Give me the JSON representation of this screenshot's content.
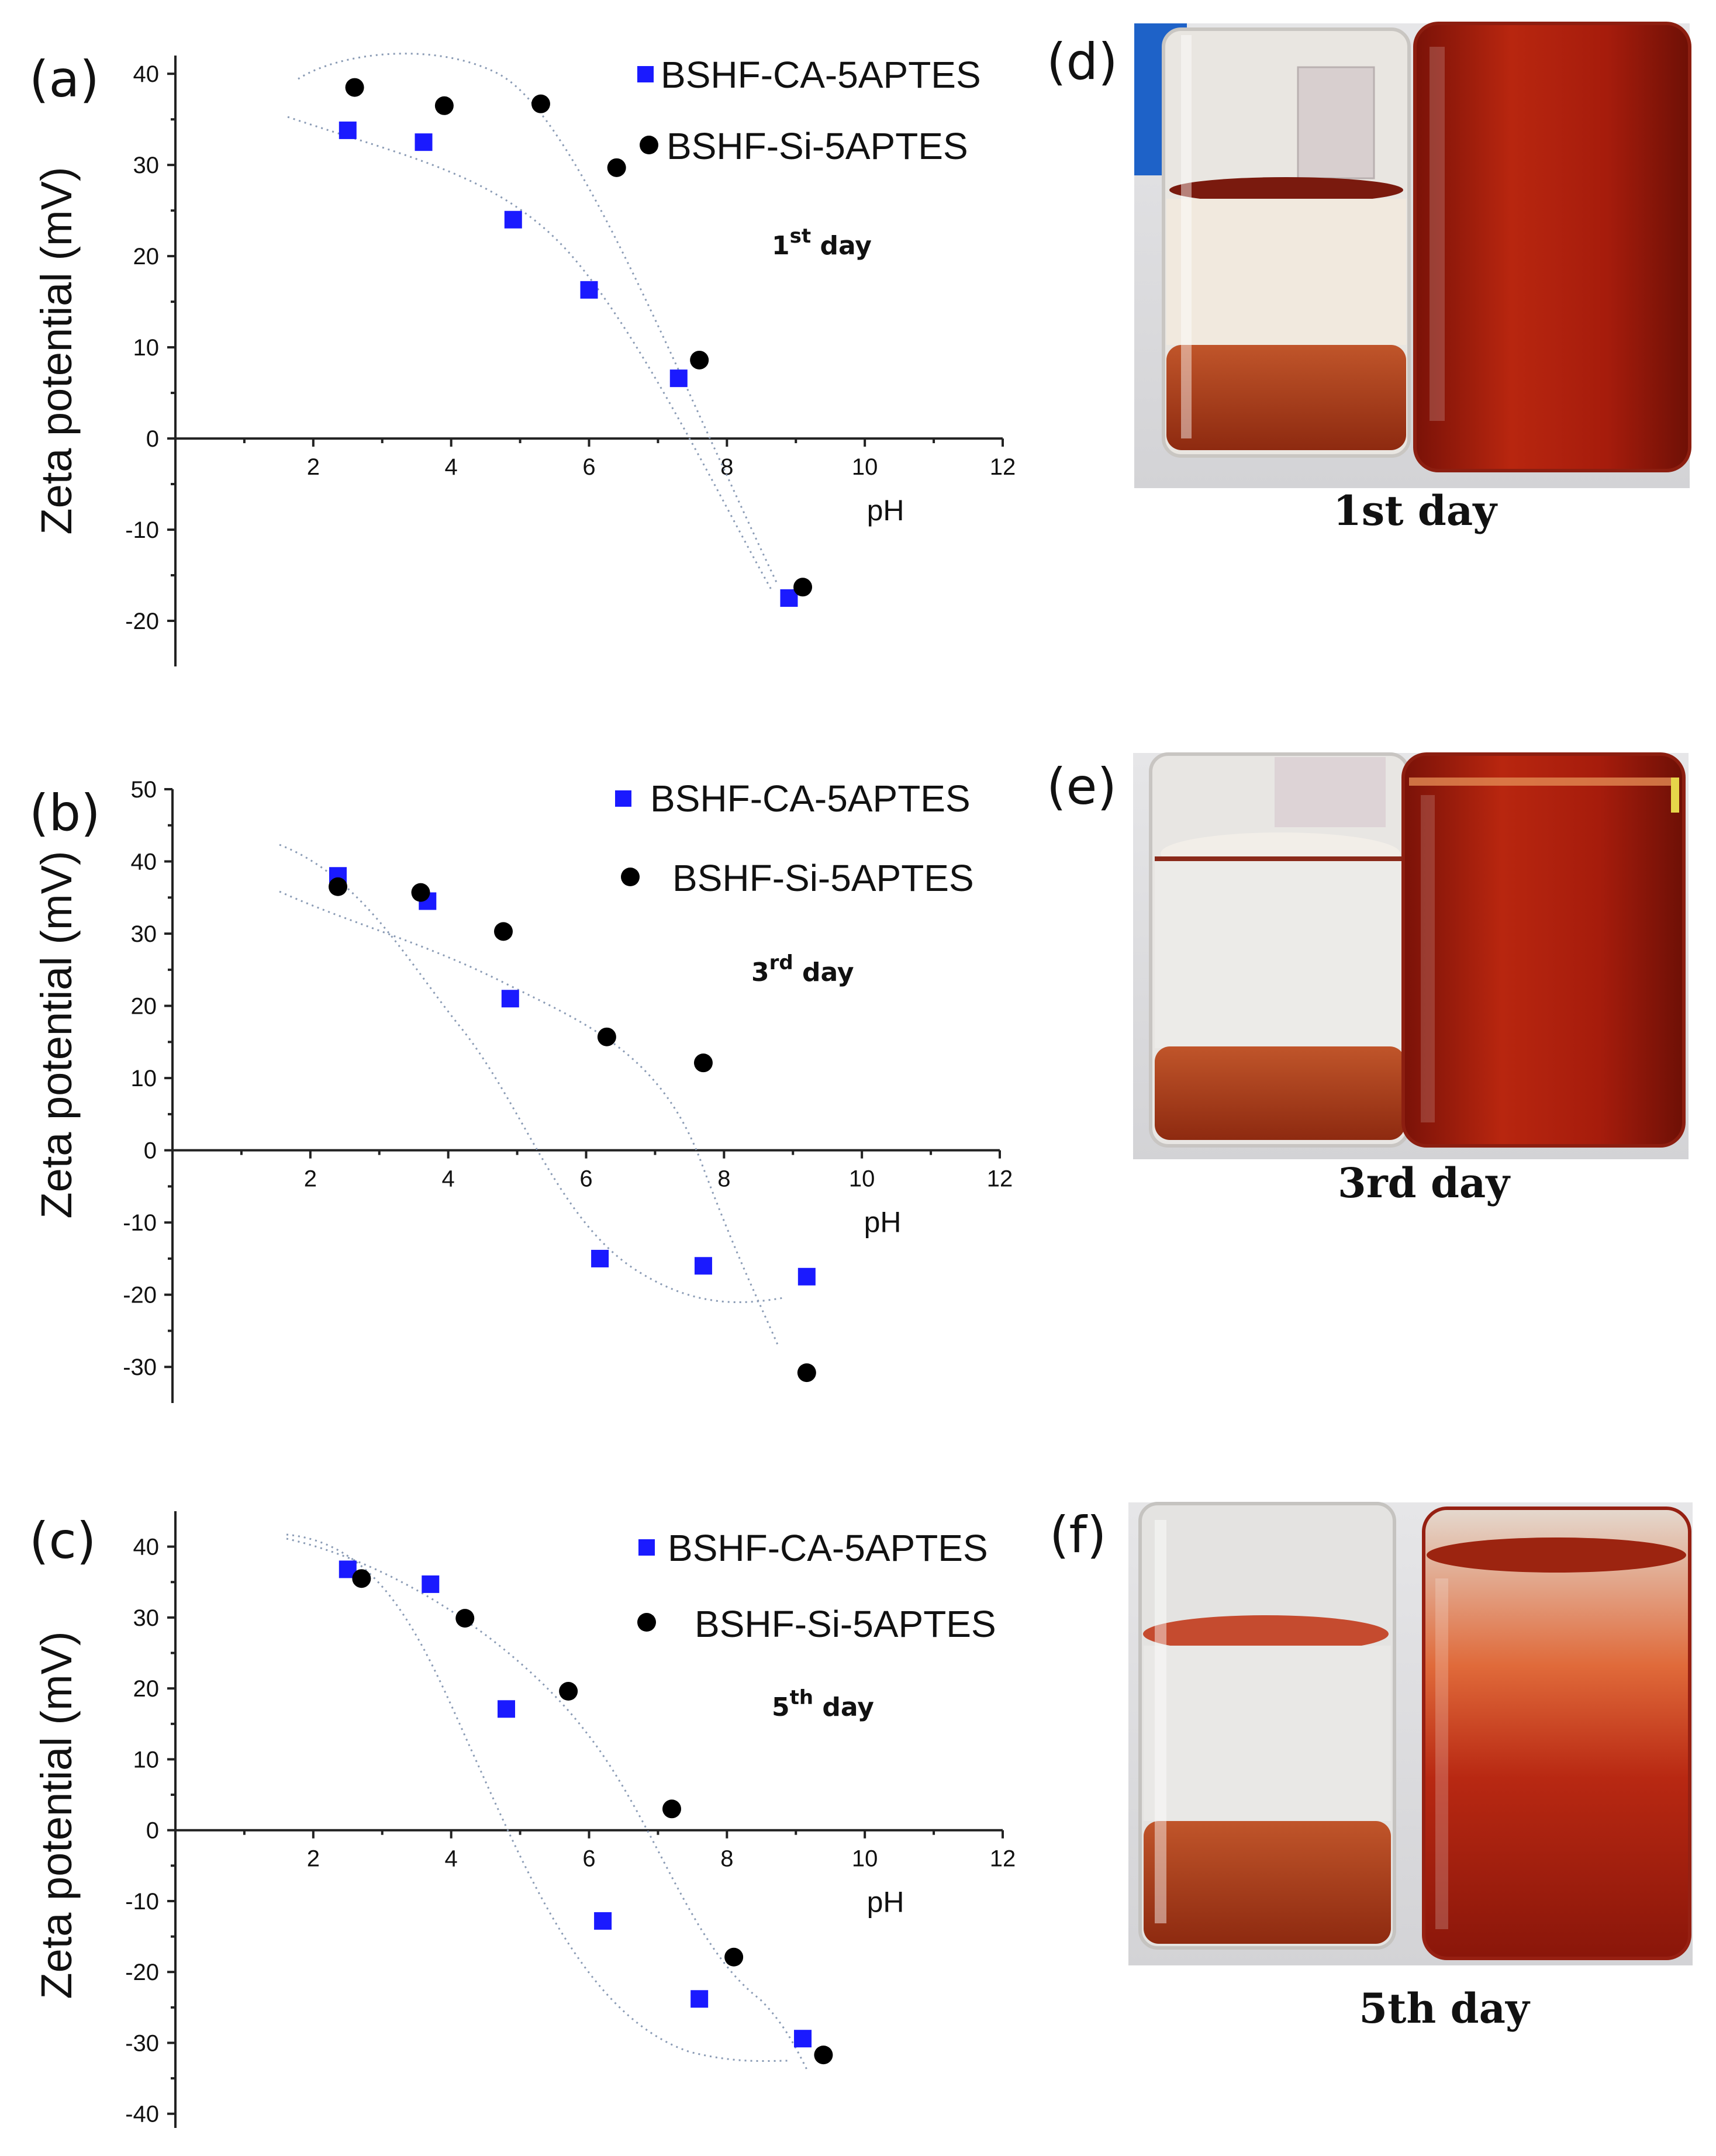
{
  "chart_data": [
    {
      "type": "scatter",
      "panel": "(a)",
      "day_label": {
        "pre": "1",
        "sup": "st",
        "post": " day"
      },
      "xlabel": "pH",
      "ylabel": "Zeta potential (mV)",
      "xlim": [
        0,
        12
      ],
      "ylim": [
        -25,
        42
      ],
      "xticks": [
        2,
        4,
        6,
        8,
        10,
        12
      ],
      "yticks": [
        -20,
        -10,
        0,
        10,
        20,
        30,
        40
      ],
      "series": [
        {
          "name": "BSHF-CA-5APTES",
          "marker": "square",
          "color": "#1a1aff",
          "x": [
            2.5,
            3.6,
            4.9,
            6.0,
            7.3,
            8.9
          ],
          "y": [
            33.8,
            32.5,
            24.0,
            16.3,
            6.6,
            -17.5
          ]
        },
        {
          "name": "BSHF-Si-5APTES",
          "marker": "circle",
          "color": "#000000",
          "x": [
            2.6,
            3.9,
            5.3,
            6.4,
            7.6,
            9.1
          ],
          "y": [
            38.5,
            36.5,
            36.7,
            29.7,
            8.6,
            -16.3
          ]
        }
      ]
    },
    {
      "type": "scatter",
      "panel": "(b)",
      "day_label": {
        "pre": "3",
        "sup": "rd",
        "post": " day"
      },
      "xlabel": "pH",
      "ylabel": "Zeta potential (mV)",
      "xlim": [
        0,
        12
      ],
      "ylim": [
        -35,
        50
      ],
      "xticks": [
        2,
        4,
        6,
        8,
        10,
        12
      ],
      "yticks": [
        -30,
        -20,
        -10,
        0,
        10,
        20,
        30,
        40,
        50
      ],
      "series": [
        {
          "name": "BSHF-CA-5APTES",
          "marker": "square",
          "color": "#1a1aff",
          "x": [
            2.4,
            3.7,
            4.9,
            6.2,
            7.7,
            9.2
          ],
          "y": [
            38.0,
            34.5,
            21.0,
            -15.0,
            -16.0,
            -17.5
          ]
        },
        {
          "name": "BSHF-Si-5APTES",
          "marker": "circle",
          "color": "#000000",
          "x": [
            2.4,
            3.6,
            4.8,
            6.3,
            7.7,
            9.2
          ],
          "y": [
            36.5,
            35.7,
            30.3,
            15.7,
            12.1,
            -30.8
          ]
        }
      ]
    },
    {
      "type": "scatter",
      "panel": "(c)",
      "day_label": {
        "pre": "5",
        "sup": "th",
        "post": " day"
      },
      "xlabel": "pH",
      "ylabel": "Zeta potential (mV)",
      "xlim": [
        0,
        12
      ],
      "ylim": [
        -42,
        45
      ],
      "xticks": [
        2,
        4,
        6,
        8,
        10,
        12
      ],
      "yticks": [
        -40,
        -30,
        -20,
        -10,
        0,
        10,
        20,
        30,
        40
      ],
      "series": [
        {
          "name": "BSHF-CA-5APTES",
          "marker": "square",
          "color": "#1a1aff",
          "x": [
            2.5,
            3.7,
            4.8,
            6.2,
            7.6,
            9.1
          ],
          "y": [
            36.8,
            34.7,
            17.1,
            -12.8,
            -23.8,
            -29.4
          ]
        },
        {
          "name": "BSHF-Si-5APTES",
          "marker": "circle",
          "color": "#000000",
          "x": [
            2.7,
            4.2,
            5.7,
            7.2,
            8.1,
            9.4
          ],
          "y": [
            35.5,
            29.9,
            19.6,
            3.0,
            -17.9,
            -31.7
          ]
        }
      ]
    }
  ],
  "photos": [
    {
      "panel": "(d)",
      "caption": "1st day"
    },
    {
      "panel": "(e)",
      "caption": "3rd day"
    },
    {
      "panel": "(f)",
      "caption": "5th day"
    }
  ]
}
